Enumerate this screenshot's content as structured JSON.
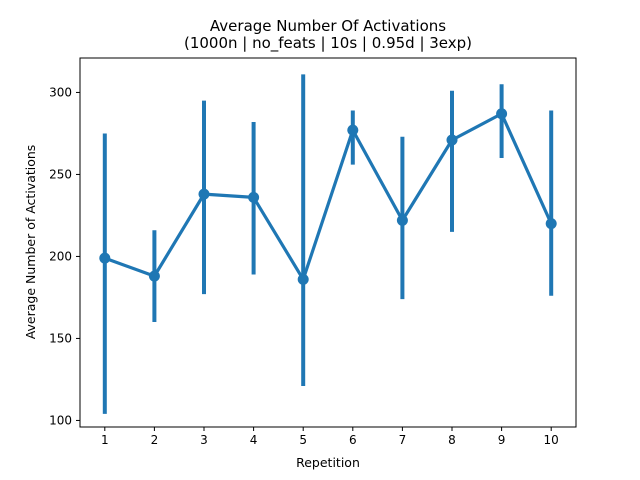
{
  "chart_data": {
    "type": "line",
    "title": "Average Number Of Activations",
    "subtitle": "(1000n | no_feats | 10s | 0.95d | 3exp)",
    "xlabel": "Repetition",
    "ylabel": "Average Number of Activations",
    "categories": [
      "1",
      "2",
      "3",
      "4",
      "5",
      "6",
      "7",
      "8",
      "9",
      "10"
    ],
    "yticks": [
      100,
      150,
      200,
      250,
      300
    ],
    "ylim": [
      96,
      321
    ],
    "grid": false,
    "legend": "none",
    "series": [
      {
        "color": "#1f77b4",
        "values": [
          199,
          188,
          238,
          236,
          186,
          277,
          222,
          271,
          287,
          220
        ],
        "error_low": [
          104,
          160,
          177,
          189,
          121,
          256,
          174,
          215,
          260,
          176
        ],
        "error_high": [
          275,
          216,
          295,
          282,
          311,
          289,
          273,
          301,
          305,
          289
        ]
      }
    ]
  }
}
